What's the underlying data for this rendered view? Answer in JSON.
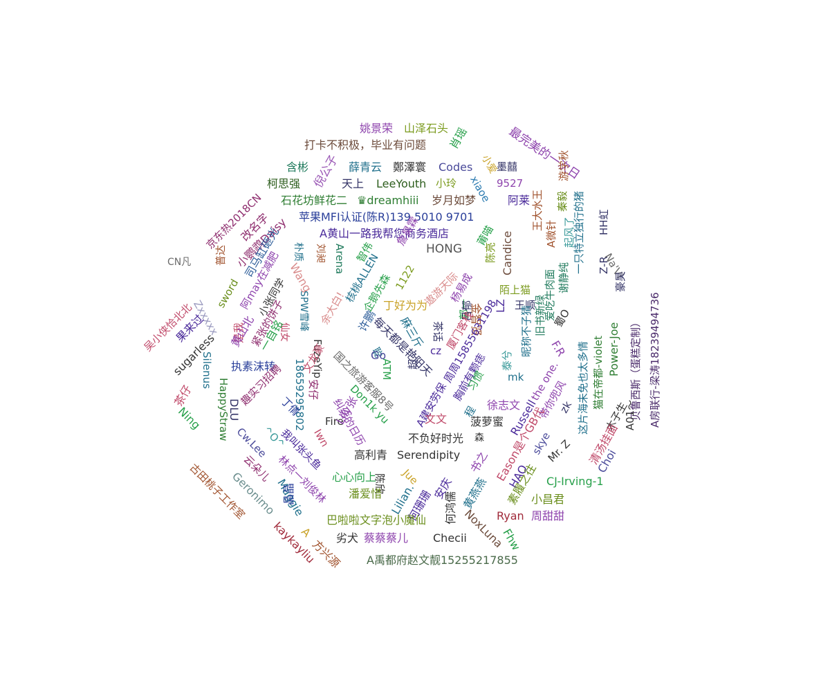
{
  "cloud": {
    "words": [
      {
        "text": "姚景荣",
        "color": "#8e44ad"
      },
      {
        "text": "山泽石头",
        "color": "#7a9a1c"
      },
      {
        "text": "最完美的一次日",
        "color": "#8e44ad"
      },
      {
        "text": "打卡不积极，毕业有问题",
        "color": "#6b4a3a"
      },
      {
        "text": "肖瑶",
        "color": "#27a04a"
      },
      {
        "text": "含彬",
        "color": "#1f7a5c"
      },
      {
        "text": "倪公子",
        "color": "#9b59b6"
      },
      {
        "text": "薛青云",
        "color": "#1f6f8b"
      },
      {
        "text": "鄭澤寰",
        "color": "#333333"
      },
      {
        "text": "Codes",
        "color": "#4a4a9a"
      },
      {
        "text": "小爱",
        "color": "#c9a227"
      },
      {
        "text": "墨囍",
        "color": "#333366"
      },
      {
        "text": "柯思强",
        "color": "#2e5e1e"
      },
      {
        "text": "天上",
        "color": "#333366"
      },
      {
        "text": "LeeYouth",
        "color": "#2e5e1e"
      },
      {
        "text": "小玲",
        "color": "#7a9a1c"
      },
      {
        "text": "xiaoe",
        "color": "#2a7ab0"
      },
      {
        "text": "9527",
        "color": "#8e44ad"
      },
      {
        "text": "游学秋",
        "color": "#a0522d"
      },
      {
        "text": "京东热2018CN",
        "color": "#8e2d6e"
      },
      {
        "text": "改名字",
        "color": "#8e2d6e"
      },
      {
        "text": "石花坊鲜花二",
        "color": "#2e7d32"
      },
      {
        "text": "♛dreamhiii",
        "color": "#2e7d32"
      },
      {
        "text": "岁月如梦",
        "color": "#6b4a3a"
      },
      {
        "text": "阿莱",
        "color": "#4a2a9a"
      },
      {
        "text": "秦毅",
        "color": "#6a8e1c"
      },
      {
        "text": "小鹦鹉Daisy",
        "color": "#8e2d6e"
      },
      {
        "text": "苹果MFI认证(陈R)139 5010 9701",
        "color": "#2a3f9a"
      },
      {
        "text": "王大水王",
        "color": "#a0522d"
      },
      {
        "text": "A微针",
        "color": "#a0522d"
      },
      {
        "text": "一只特立独行的猪",
        "color": "#1f6f8b"
      },
      {
        "text": "司马缸砸光",
        "color": "#2e5e9a"
      },
      {
        "text": "A黄山一路我帮您商务酒店",
        "color": "#4a2a9a"
      },
      {
        "text": "起风了",
        "color": "#3a9a9a"
      },
      {
        "text": "莆喵",
        "color": "#27a04a"
      },
      {
        "text": "Z-R",
        "color": "#333366"
      },
      {
        "text": "HH虹",
        "color": "#333366"
      },
      {
        "text": "普达",
        "color": "#a0522d"
      },
      {
        "text": "朴质",
        "color": "#1f6f8b"
      },
      {
        "text": "Arena",
        "color": "#1f7a5c"
      },
      {
        "text": "刘昶",
        "color": "#a0522d"
      },
      {
        "text": "智伟",
        "color": "#27a04a"
      },
      {
        "text": "詹昊霖",
        "color": "#8e44ad"
      },
      {
        "text": "HONG",
        "color": "#555555"
      },
      {
        "text": "陈亮",
        "color": "#7a9a1c"
      },
      {
        "text": "Candice",
        "color": "#6b4a3a"
      },
      {
        "text": "谢静纯",
        "color": "#1f7a5c"
      },
      {
        "text": "爱吃牛肉面",
        "color": "#1f7a5c"
      },
      {
        "text": "Na'Vi",
        "color": "#6b6b6b"
      },
      {
        "text": "CN凡",
        "color": "#6b6b6b"
      },
      {
        "text": "阿may在减肥",
        "color": "#8e44ad"
      },
      {
        "text": "Wang",
        "color": "#d98c8c"
      },
      {
        "text": "核桃ALLEN",
        "color": "#1f6f8b"
      },
      {
        "text": "企鹅先森",
        "color": "#27a04a"
      },
      {
        "text": "1122",
        "color": "#7a9a1c"
      },
      {
        "text": "遨游天际",
        "color": "#d98c8c"
      },
      {
        "text": "陌上猫",
        "color": "#7a9a1c"
      },
      {
        "text": "王顺",
        "color": "#333366"
      },
      {
        "text": "sword",
        "color": "#6a8e1c"
      },
      {
        "text": "小张同学",
        "color": "#333333"
      },
      {
        "text": "余大白!",
        "color": "#d98c8c"
      },
      {
        "text": "杨易成",
        "color": "#8e44ad"
      },
      {
        "text": "LZ",
        "color": "#4a2a9a"
      },
      {
        "text": "金智贤",
        "color": "#a0522d"
      },
      {
        "text": "蜀O",
        "color": "#333333"
      },
      {
        "text": "旧书新绿",
        "color": "#1f7a5c"
      },
      {
        "text": "豪昊",
        "color": "#333366"
      },
      {
        "text": "吴小侠恰北北",
        "color": "#c04a6a"
      },
      {
        "text": "Zxxxxx",
        "color": "#9a9abf"
      },
      {
        "text": "SPW雪峰",
        "color": "#1f6f8b"
      },
      {
        "text": "丁好为为",
        "color": "#c9a227"
      },
      {
        "text": "是我",
        "color": "#c04a6a"
      },
      {
        "text": "每天都是艳阳天",
        "color": "#333366"
      },
      {
        "text": "郭一",
        "color": "#27a04a"
      },
      {
        "text": "Power-Joe",
        "color": "#2e7d32"
      },
      {
        "text": "果来过",
        "color": "#4a2a9a"
      },
      {
        "text": "黄山北",
        "color": "#8e44ad"
      },
      {
        "text": "紧张的饼子",
        "color": "#8e2d6e"
      },
      {
        "text": "仙女",
        "color": "#c04a6a"
      },
      {
        "text": "许鹏",
        "color": "#2e5e9a"
      },
      {
        "text": "麻三斤",
        "color": "#1f6f8b"
      },
      {
        "text": "茶话",
        "color": "#333366"
      },
      {
        "text": "吕郁",
        "color": "#333366"
      },
      {
        "text": "厦门客栈",
        "color": "#c04a6a"
      },
      {
        "text": "F.R",
        "color": "#8e44ad"
      },
      {
        "text": "A房联行-梁涛18239494736",
        "color": "#4a2a6a"
      },
      {
        "text": "sugarless",
        "color": "#333333"
      },
      {
        "text": "一自铭",
        "color": "#27a04a"
      },
      {
        "text": "FuzeYip",
        "color": "#333333"
      },
      {
        "text": "聪",
        "color": "#1f6f8b"
      },
      {
        "text": "ATM",
        "color": "#27a04a"
      },
      {
        "text": "周周15855631198",
        "color": "#4a2a9a"
      },
      {
        "text": "昵称不子猜",
        "color": "#1f6f8b"
      },
      {
        "text": "Go",
        "color": "#4a4a9a"
      },
      {
        "text": "cz",
        "color": "#4a2a9a"
      },
      {
        "text": "泰兮",
        "color": "#3a9a9a"
      },
      {
        "text": "猫在帝都-violet",
        "color": "#2e7d32"
      },
      {
        "text": "Silenus",
        "color": "#1f6f8b"
      },
      {
        "text": "执素沫转",
        "color": "#2a3f9a"
      },
      {
        "text": "文龙豪",
        "color": "#c04a6a"
      },
      {
        "text": "18659295802",
        "color": "#1f6f8b"
      },
      {
        "text": "国之旅游客服8号",
        "color": "#6b6b6b"
      },
      {
        "text": "超...",
        "color": "#333366"
      },
      {
        "text": "胸前有颗痣",
        "color": "#4a2a9a"
      },
      {
        "text": "the one.",
        "color": "#8e44ad"
      },
      {
        "text": "贝鲁西斯（蛋糕定制）",
        "color": "#4a2a6a"
      },
      {
        "text": "茶仔",
        "color": "#c04a6a"
      },
      {
        "text": "趣实习招聘",
        "color": "#8e2d6e"
      },
      {
        "text": "Don1k yu",
        "color": "#27a04a"
      },
      {
        "text": "A建安劳保",
        "color": "#4a2a9a"
      },
      {
        "text": "习惯",
        "color": "#27a04a"
      },
      {
        "text": "mk",
        "color": "#1f6f8b"
      },
      {
        "text": "这片海未免也太多情",
        "color": "#1f6f8b"
      },
      {
        "text": "HappyStraw",
        "color": "#2e7d32"
      },
      {
        "text": "DLU",
        "color": "#333366"
      },
      {
        "text": "丁倩",
        "color": "#2a3f9a"
      },
      {
        "text": "安仔",
        "color": "#8e2d6e"
      },
      {
        "text": "Fire",
        "color": "#333333"
      },
      {
        "text": "纠结的日历",
        "color": "#8e44ad"
      },
      {
        "text": "程",
        "color": "#1f6f8b"
      },
      {
        "text": "徐志文",
        "color": "#8e44ad"
      },
      {
        "text": "带你兜风",
        "color": "#8e44ad"
      },
      {
        "text": "zk",
        "color": "#333366"
      },
      {
        "text": "木子生",
        "color": "#333333"
      },
      {
        "text": "Ning",
        "color": "#27a04a"
      },
      {
        "text": "Cw.Lee",
        "color": "#4a4a9a"
      },
      {
        "text": "^O^",
        "color": "#3a9a9a"
      },
      {
        "text": "我叫张头鱼",
        "color": "#4a2a9a"
      },
      {
        "text": "Iwn",
        "color": "#c04a6a"
      },
      {
        "text": "文文",
        "color": "#c04a6a"
      },
      {
        "text": "菠萝蜜",
        "color": "#333333"
      },
      {
        "text": "Russell",
        "color": "#4a2a9a"
      },
      {
        "text": "Mr. Z",
        "color": "#333333"
      },
      {
        "text": "A01～",
        "color": "#333333"
      },
      {
        "text": "Lily张",
        "color": "#8e44ad"
      },
      {
        "text": "不负好时光",
        "color": "#333333"
      },
      {
        "text": "森",
        "color": "#333333"
      },
      {
        "text": "云朵儿",
        "color": "#8e2d6e"
      },
      {
        "text": "林点一刘俊林",
        "color": "#8e44ad"
      },
      {
        "text": "高利青",
        "color": "#333333"
      },
      {
        "text": "Serendipity",
        "color": "#333333"
      },
      {
        "text": "书之",
        "color": "#8e44ad"
      },
      {
        "text": "Eason是个GB代",
        "color": "#c04a6a"
      },
      {
        "text": "skye",
        "color": "#4a4a9a"
      },
      {
        "text": "清汤挂面",
        "color": "#c04a6a"
      },
      {
        "text": "Choi",
        "color": "#4a4a9a"
      },
      {
        "text": "古田桃子工作室",
        "color": "#a0522d"
      },
      {
        "text": "Geronimo",
        "color": "#6b8e8e"
      },
      {
        "text": "心心向上",
        "color": "#27a04a"
      },
      {
        "text": "陈欣",
        "color": "#333333"
      },
      {
        "text": "Jue",
        "color": "#c9a227"
      },
      {
        "text": "HAO",
        "color": "#4a2a9a"
      },
      {
        "text": "素履之往",
        "color": "#6a8e1c"
      },
      {
        "text": "CJ-Irving-1",
        "color": "#27a04a"
      },
      {
        "text": "Maggie",
        "color": "#1f6f8b"
      },
      {
        "text": "潘爱惜",
        "color": "#6a8e1c"
      },
      {
        "text": "Lilian.",
        "color": "#1f6f8b"
      },
      {
        "text": "何珊珊",
        "color": "#4a2a9a"
      },
      {
        "text": "安庆",
        "color": "#4a2a9a"
      },
      {
        "text": "黄燕燕",
        "color": "#1f6f8b"
      },
      {
        "text": "小昌君",
        "color": "#6a8e1c"
      },
      {
        "text": "晶晶",
        "color": "#2a3f9a"
      },
      {
        "text": "何鸿儒",
        "color": "#333333"
      },
      {
        "text": "Ryan",
        "color": "#a02a3a"
      },
      {
        "text": "周甜甜",
        "color": "#8e44ad"
      },
      {
        "text": "巴啦啦文字泡小魔仙",
        "color": "#6a8e1c"
      },
      {
        "text": "NoxLuna",
        "color": "#6b4a3a"
      },
      {
        "text": "Fhw",
        "color": "#27a04a"
      },
      {
        "text": "kaykayliu",
        "color": "#a02a3a"
      },
      {
        "text": "A",
        "color": "#c9a227"
      },
      {
        "text": "方兴源",
        "color": "#a0522d"
      },
      {
        "text": "劣犬",
        "color": "#333333"
      },
      {
        "text": "蔡蔡蔡儿",
        "color": "#8e44ad"
      },
      {
        "text": "Checii",
        "color": "#333333"
      },
      {
        "text": "A禹都府赵文靓15255217855",
        "color": "#4a6a4a"
      }
    ]
  }
}
